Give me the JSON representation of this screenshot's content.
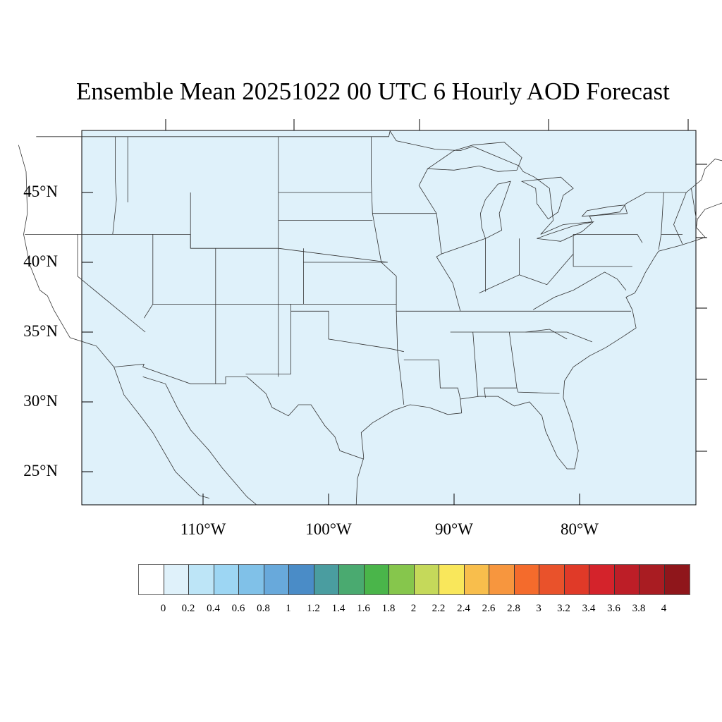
{
  "title": "Ensemble Mean 20251022 00 UTC 6 Hourly AOD Forecast",
  "map": {
    "background_fill": "#dff1fa",
    "line_color": "#333333",
    "lat_labels": [
      "45°N",
      "40°N",
      "35°N",
      "30°N",
      "25°N"
    ],
    "lon_labels": [
      "110°W",
      "100°W",
      "90°W",
      "80°W"
    ]
  },
  "colorbar": {
    "colors": [
      "#ffffff",
      "#dff1fa",
      "#bde5f7",
      "#9dd6f3",
      "#80c1e8",
      "#68a9db",
      "#4a8cc7",
      "#4a9da0",
      "#4aaa70",
      "#4ab54a",
      "#86c64c",
      "#c5d95a",
      "#f9e75b",
      "#f8be4c",
      "#f7963e",
      "#f46b2c",
      "#e9522b",
      "#e03a28",
      "#d4232b",
      "#bd1e27",
      "#a91c22",
      "#8f161b"
    ],
    "labels": [
      "0",
      "0.2",
      "0.4",
      "0.6",
      "0.8",
      "1",
      "1.2",
      "1.4",
      "1.6",
      "1.8",
      "2",
      "2.2",
      "2.4",
      "2.6",
      "2.8",
      "3",
      "3.2",
      "3.4",
      "3.6",
      "3.8",
      "4"
    ]
  }
}
